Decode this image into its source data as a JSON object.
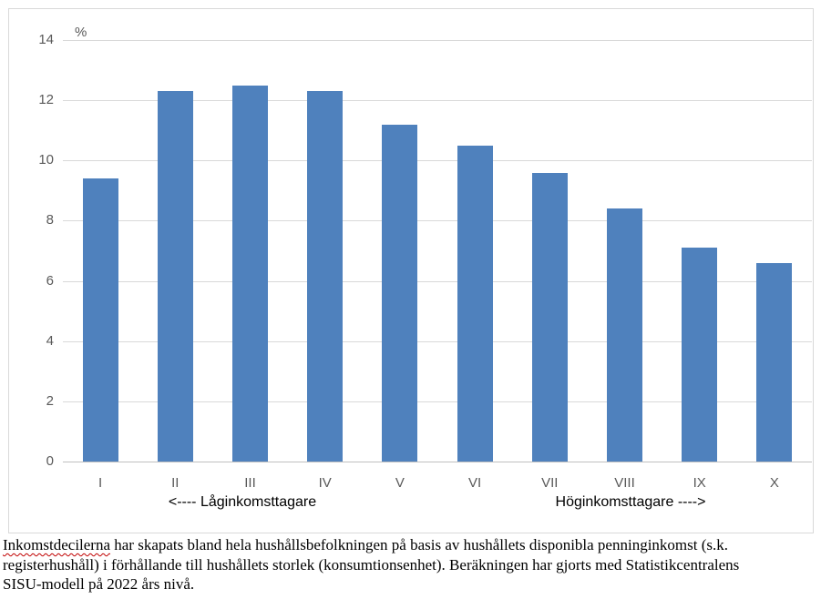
{
  "chart_data": {
    "type": "bar",
    "title": "",
    "unit_label": "%",
    "categories": [
      "I",
      "II",
      "III",
      "IV",
      "V",
      "VI",
      "VII",
      "VIII",
      "IX",
      "X"
    ],
    "values": [
      9.4,
      12.3,
      12.5,
      12.3,
      11.2,
      10.5,
      9.6,
      8.4,
      7.1,
      6.6
    ],
    "ylim": [
      0,
      14
    ],
    "yticks": [
      0,
      2,
      4,
      6,
      8,
      10,
      12,
      14
    ],
    "grid": "horizontal",
    "legend_position": "none",
    "annotation_left": "<---- Låginkomsttagare",
    "annotation_right": "Höginkomsttagare ---->",
    "colors": {
      "bar": "#4f81bd",
      "gridline": "#d9d9d9",
      "axis_line": "#bfbfbf",
      "tick_label": "#595959",
      "chart_border": "#d9d9d9",
      "annotation_text": "#000000",
      "spellcheck_underline": "#c00000"
    }
  },
  "caption": {
    "line1_misspelled_word": "Inkomstdecilerna",
    "line1_rest": " har skapats bland hela hushållsbefolkningen på basis av hushållets disponibla penninginkomst (s.k.",
    "line2": "registerhushåll) i förhållande till hushållets storlek (konsumtionsenhet). Beräkningen har gjorts med Statistikcentralens",
    "line3": "SISU-modell på 2022 års nivå."
  }
}
